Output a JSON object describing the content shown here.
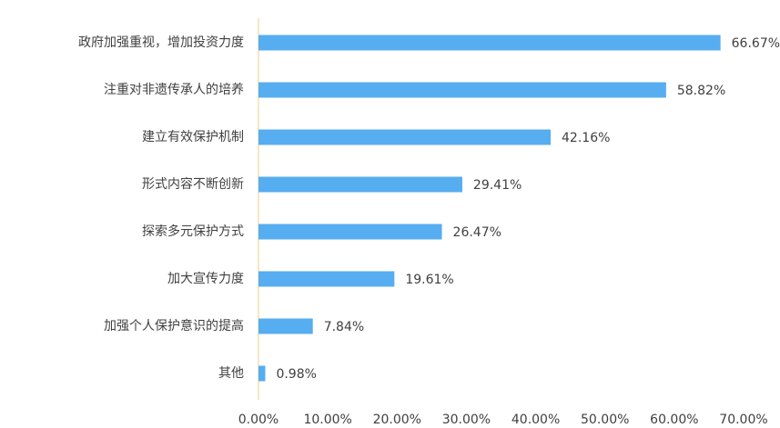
{
  "chart_data": {
    "type": "hbar",
    "categories": [
      "政府加强重视，增加投资力度",
      "注重对非遗传承人的培养",
      "建立有效保护机制",
      "形式内容不断创新",
      "探索多元保护方式",
      "加大宣传力度",
      "加强个人保护意识的提高",
      "其他"
    ],
    "values": [
      66.67,
      58.82,
      42.16,
      29.41,
      26.47,
      19.61,
      7.84,
      0.98
    ],
    "value_labels": [
      "66.67%",
      "58.82%",
      "42.16%",
      "29.41%",
      "26.47%",
      "19.61%",
      "7.84%",
      "0.98%"
    ],
    "color": "#56adf0",
    "xlim": [
      0,
      70
    ],
    "xticks": [
      {
        "value": 0,
        "label": "0.00%"
      },
      {
        "value": 10,
        "label": "10.00%"
      },
      {
        "value": 20,
        "label": "20.00%"
      },
      {
        "value": 30,
        "label": "30.00%"
      },
      {
        "value": 40,
        "label": "40.00%"
      },
      {
        "value": 50,
        "label": "50.00%"
      },
      {
        "value": 60,
        "label": "60.00%"
      },
      {
        "value": 70,
        "label": "70.00%"
      }
    ],
    "grid": false
  }
}
